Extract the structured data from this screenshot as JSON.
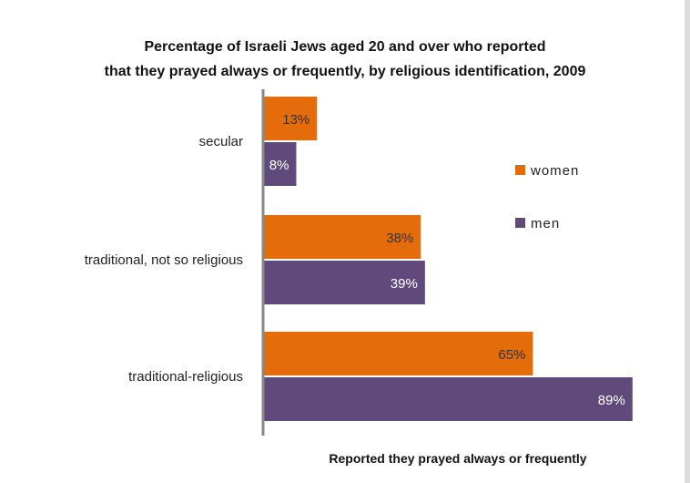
{
  "chart_data": {
    "type": "bar",
    "orientation": "horizontal",
    "title_lines": [
      "Percentage of Israeli Jews aged 20 and over who reported",
      "that they prayed always or frequently, by religious identification, 2009"
    ],
    "categories": [
      "secular",
      "traditional, not so religious",
      "traditional-religious"
    ],
    "series": [
      {
        "name": "women",
        "values": [
          13,
          38,
          65
        ],
        "labels": [
          "13%",
          "38%",
          "65%"
        ],
        "color": "#E46C0A"
      },
      {
        "name": "men",
        "values": [
          8,
          39,
          89
        ],
        "labels": [
          "8%",
          "39%",
          "89%"
        ],
        "color": "#604A7B"
      }
    ],
    "xlabel": "Reported they prayed always or frequently",
    "ylabel": "",
    "xlim": [
      0,
      100
    ],
    "grid": false,
    "legend_position": "right"
  }
}
